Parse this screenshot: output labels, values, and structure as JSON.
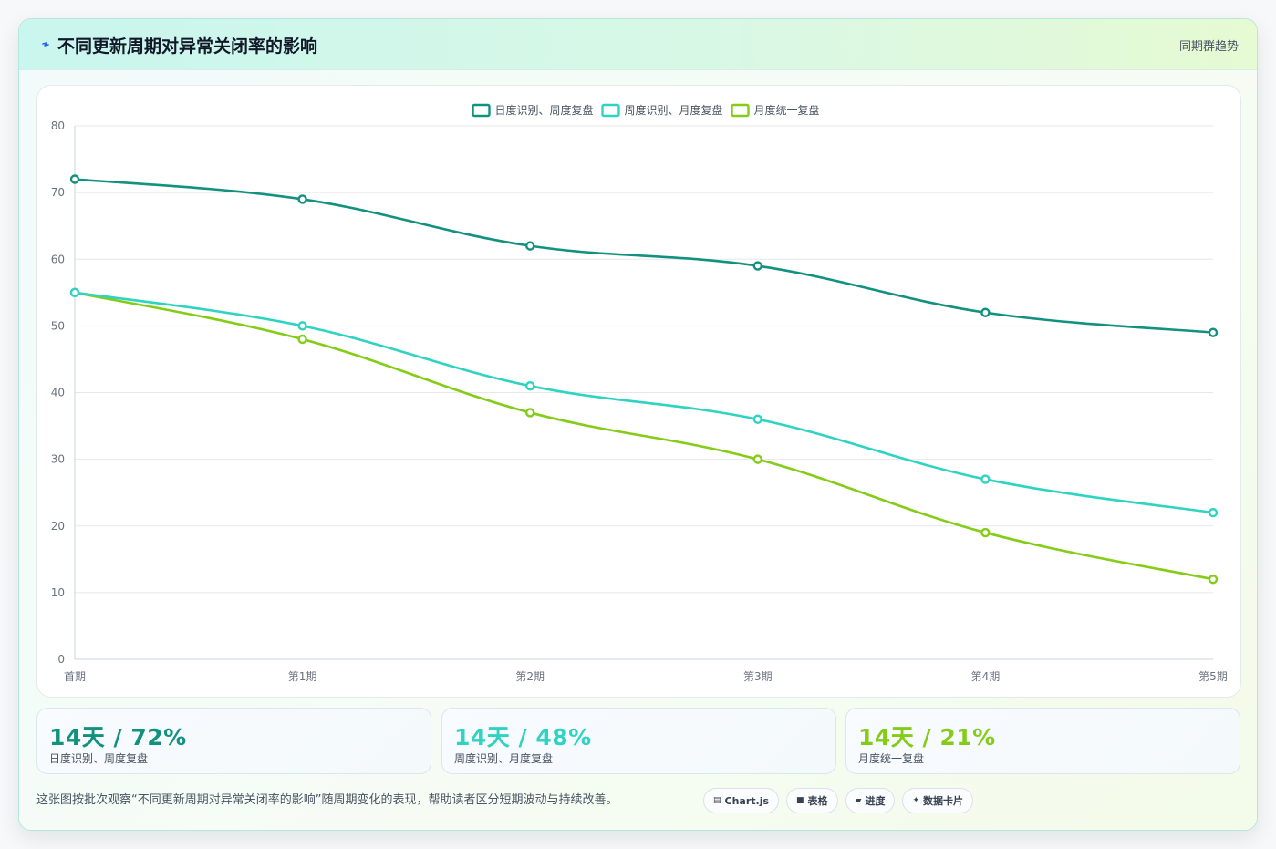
{
  "header": {
    "title": "不同更新周期对异常关闭率的影响",
    "badge": "同期群趋势",
    "icon": "lightning-icon"
  },
  "colors": {
    "series1": "#13917f",
    "series2": "#2fd3c2",
    "series3": "#84cc16",
    "grid": "#e5e7eb",
    "axis": "#cbd5e1"
  },
  "chart_data": {
    "type": "line",
    "title": "",
    "xlabel": "",
    "ylabel": "",
    "categories": [
      "首期",
      "第1期",
      "第2期",
      "第3期",
      "第4期",
      "第5期"
    ],
    "ylim": [
      0,
      80
    ],
    "yticks": [
      0,
      10,
      20,
      30,
      40,
      50,
      60,
      70,
      80
    ],
    "grid": true,
    "legend_position": "top-center",
    "series": [
      {
        "name": "日度识别、周度复盘",
        "color": "#13917f",
        "values": [
          72,
          69,
          62,
          59,
          52,
          49
        ]
      },
      {
        "name": "周度识别、月度复盘",
        "color": "#2fd3c2",
        "values": [
          55,
          50,
          41,
          36,
          27,
          22
        ]
      },
      {
        "name": "月度统一复盘",
        "color": "#84cc16",
        "values": [
          55,
          48,
          37,
          30,
          19,
          12
        ]
      }
    ]
  },
  "kpis": [
    {
      "value": "14天 / 72%",
      "label": "日度识别、周度复盘",
      "color": "#13917f"
    },
    {
      "value": "14天 / 48%",
      "label": "周度识别、月度复盘",
      "color": "#2fd3c2"
    },
    {
      "value": "14天 / 21%",
      "label": "月度统一复盘",
      "color": "#84cc16"
    }
  ],
  "footer": {
    "description": "这张图按批次观察“不同更新周期对异常关闭率的影响”随周期变化的表现，帮助读者区分短期波动与持续改善。",
    "chips": [
      {
        "icon": "▤",
        "label": "Chart.js",
        "icon_name": "chart-icon"
      },
      {
        "icon": "■",
        "label": "表格",
        "icon_name": "table-icon"
      },
      {
        "icon": "▰",
        "label": "进度",
        "icon_name": "progress-icon"
      },
      {
        "icon": "✦",
        "label": "数据卡片",
        "icon_name": "sparkle-icon"
      }
    ]
  }
}
